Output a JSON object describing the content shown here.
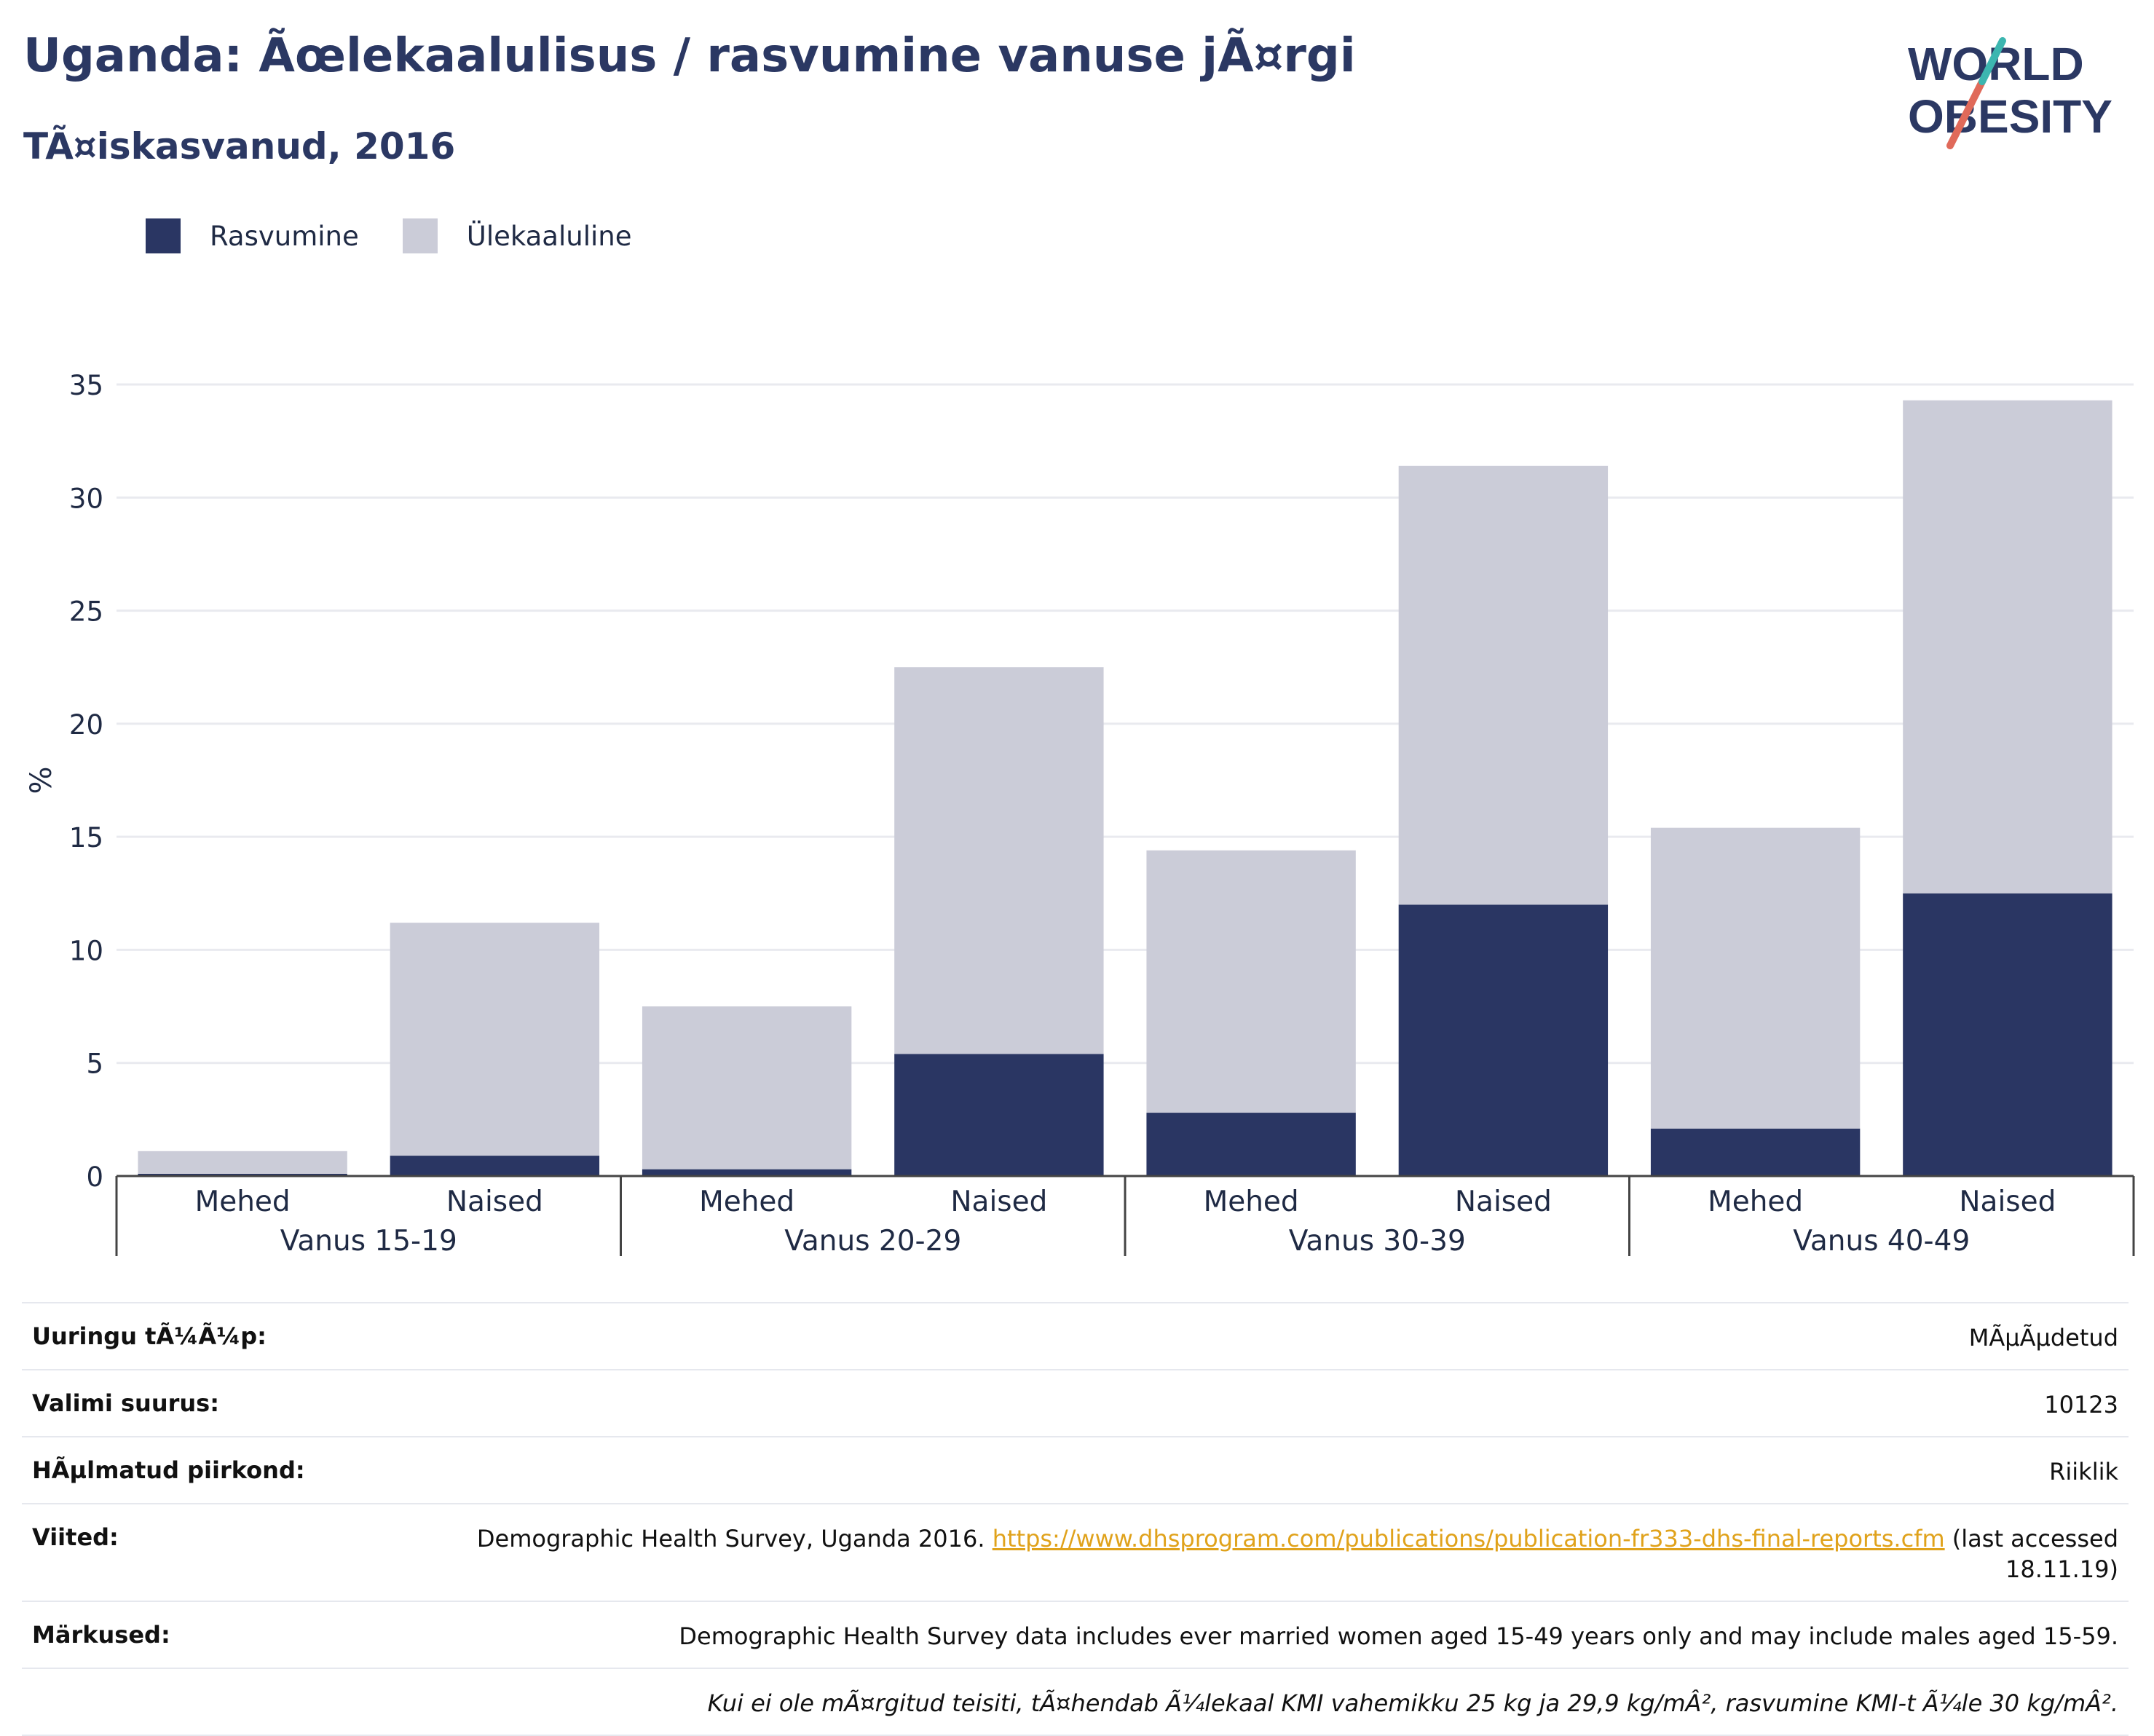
{
  "header": {
    "title": "Uganda: Ãœlekaalulisus / rasvumine vanuse jÃ¤rgi",
    "subtitle": "TÃ¤iskasvanud, 2016",
    "logo_line1": "WORLD",
    "logo_line2": "OBESITY"
  },
  "legend": {
    "items": [
      {
        "label": "Rasvumine",
        "color": "#2a3663"
      },
      {
        "label": "Ülekaaluline",
        "color": "#cbccd8"
      }
    ]
  },
  "chart_data": {
    "type": "bar",
    "stacked": true,
    "ylabel": "%",
    "ylim": [
      0,
      35
    ],
    "yticks": [
      0,
      5,
      10,
      15,
      20,
      25,
      30,
      35
    ],
    "grid": true,
    "legend_position": "top-left",
    "groups": [
      {
        "label": "Vanus 15-19",
        "categories": [
          "Mehed",
          "Naised"
        ]
      },
      {
        "label": "Vanus 20-29",
        "categories": [
          "Mehed",
          "Naised"
        ]
      },
      {
        "label": "Vanus 30-39",
        "categories": [
          "Mehed",
          "Naised"
        ]
      },
      {
        "label": "Vanus 40-49",
        "categories": [
          "Mehed",
          "Naised"
        ]
      }
    ],
    "series": [
      {
        "name": "Rasvumine",
        "color": "#2a3663",
        "values": [
          0.1,
          0.9,
          0.3,
          5.4,
          2.8,
          12.0,
          2.1,
          12.5
        ]
      },
      {
        "name": "Ülekaaluline",
        "color": "#cbccd8",
        "values": [
          1.0,
          10.3,
          7.2,
          17.1,
          11.6,
          19.4,
          13.3,
          21.8
        ]
      }
    ]
  },
  "info": {
    "rows": [
      {
        "key": "Uuringu tÃ¼Ã¼p:",
        "value": "MÃµÃµdetud"
      },
      {
        "key": "Valimi suurus:",
        "value": "10123"
      },
      {
        "key": "HÃµlmatud piirkond:",
        "value": "Riiklik"
      },
      {
        "key": "Märkused:",
        "value": "Demographic Health Survey data includes ever married women aged 15-49 years only and may include males aged 15-59."
      },
      {
        "key": "",
        "value": "Kui ei ole mÃ¤rgitud teisiti, tÃ¤hendab Ã¼lekaal KMI vahemikku 25 kg ja 29,9 kg/mÂ², rasvumine KMI-t Ã¼le 30 kg/mÂ²."
      }
    ],
    "references": {
      "key": "Viited:",
      "text_before": "Demographic Health Survey, Uganda 2016. ",
      "link": "https://www.dhsprogram.com/publications/publication-fr333-dhs-final-reports.cfm",
      "text_after": " (last accessed 18.11.19)"
    }
  }
}
